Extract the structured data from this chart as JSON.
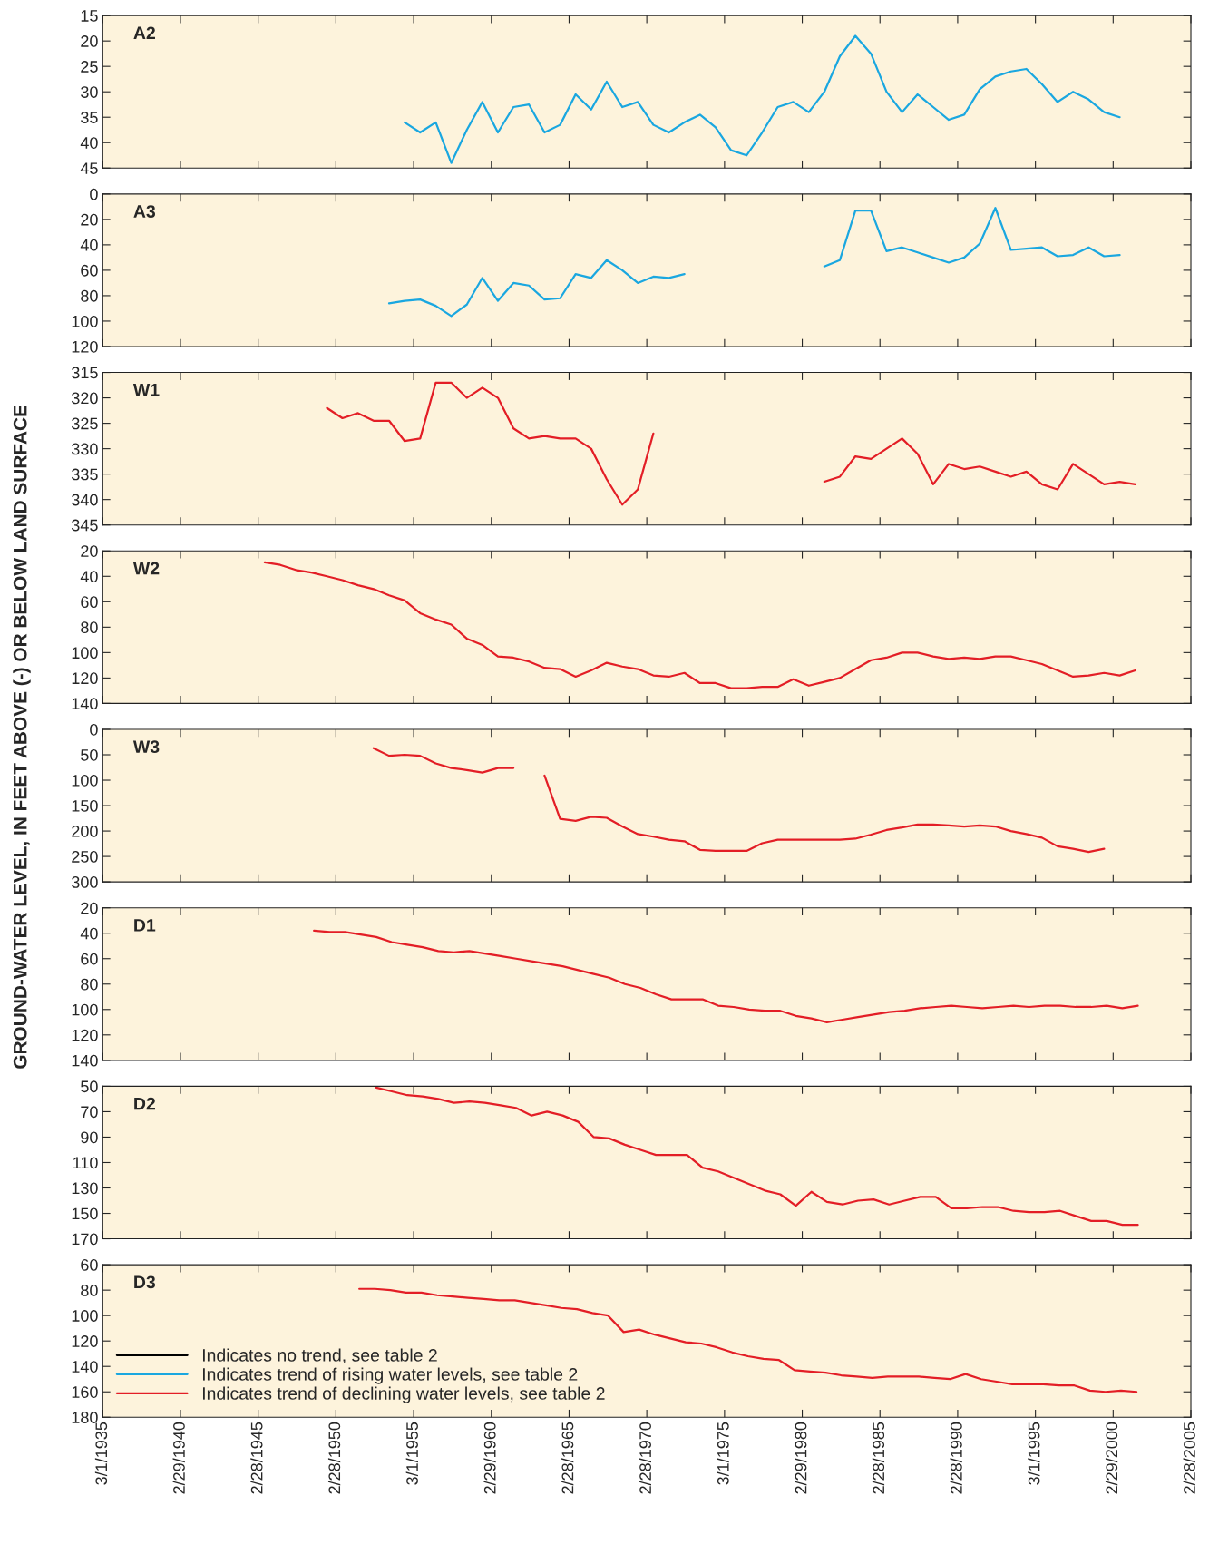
{
  "chart_data": [
    {
      "type": "line",
      "title": "A2",
      "xlim": [
        "1935-03-01",
        "2005-02-28"
      ],
      "xticks": [
        {
          "value": "1935-03-01",
          "label": null
        },
        {
          "value": "1940-02-29",
          "label": null
        },
        {
          "value": "1945-02-28",
          "label": null
        },
        {
          "value": "1950-02-28",
          "label": null
        },
        {
          "value": "1955-03-01",
          "label": null
        },
        {
          "value": "1960-02-29",
          "label": null
        },
        {
          "value": "1965-02-28",
          "label": null
        },
        {
          "value": "1970-02-28",
          "label": null
        },
        {
          "value": "1975-03-01",
          "label": null
        },
        {
          "value": "1980-02-29",
          "label": null
        },
        {
          "value": "1985-02-28",
          "label": null
        },
        {
          "value": "1990-02-28",
          "label": null
        },
        {
          "value": "1995-03-01",
          "label": null
        },
        {
          "value": "2000-02-29",
          "label": null
        },
        {
          "value": "2005-02-28",
          "label": null
        }
      ],
      "ylim": [
        45,
        15
      ],
      "yticks": [
        15,
        20,
        25,
        30,
        35,
        40,
        45
      ],
      "tick_labels": "y",
      "grid": false,
      "legend": false,
      "series": [
        {
          "color": "#1aa7e0",
          "x": [
            "1954-08",
            "1955-08",
            "1956-08",
            "1957-08",
            "1958-08",
            "1959-08",
            "1960-08",
            "1961-08",
            "1962-08",
            "1963-08",
            "1964-08",
            "1965-08",
            "1966-08",
            "1967-08",
            "1968-08",
            "1969-08",
            "1970-08",
            "1971-08",
            "1972-08",
            "1973-08",
            "1974-08",
            "1975-08",
            "1976-08",
            "1977-08",
            "1978-08",
            "1979-08",
            "1980-08",
            "1981-08",
            "1982-08",
            "1983-08",
            "1984-08",
            "1985-08",
            "1986-08",
            "1987-08",
            "1988-08",
            "1989-08",
            "1990-08",
            "1991-08",
            "1992-08",
            "1993-08",
            "1994-08",
            "1995-08",
            "1996-08",
            "1997-08",
            "1998-08",
            "1999-08",
            "2000-08"
          ],
          "values": [
            36,
            38,
            36,
            44,
            37.5,
            32,
            38,
            33,
            32.5,
            38,
            36.5,
            30.5,
            33.5,
            28,
            33,
            32,
            36.5,
            38,
            36,
            34.5,
            37,
            41.5,
            42.5,
            38,
            33,
            32,
            34,
            30,
            23,
            19,
            22.5,
            30,
            34,
            30.5,
            33,
            35.5,
            34.5,
            29.5,
            27,
            26,
            25.5,
            28.5,
            32,
            30,
            31.5,
            34,
            35
          ]
        }
      ]
    },
    {
      "type": "line",
      "title": "A3",
      "xlim": [
        "1935-03-01",
        "2005-02-28"
      ],
      "xticks": [
        {
          "value": "1935-03-01",
          "label": null
        },
        {
          "value": "1940-02-29",
          "label": null
        },
        {
          "value": "1945-02-28",
          "label": null
        },
        {
          "value": "1950-02-28",
          "label": null
        },
        {
          "value": "1955-03-01",
          "label": null
        },
        {
          "value": "1960-02-29",
          "label": null
        },
        {
          "value": "1965-02-28",
          "label": null
        },
        {
          "value": "1970-02-28",
          "label": null
        },
        {
          "value": "1975-03-01",
          "label": null
        },
        {
          "value": "1980-02-29",
          "label": null
        },
        {
          "value": "1985-02-28",
          "label": null
        },
        {
          "value": "1990-02-28",
          "label": null
        },
        {
          "value": "1995-03-01",
          "label": null
        },
        {
          "value": "2000-02-29",
          "label": null
        },
        {
          "value": "2005-02-28",
          "label": null
        }
      ],
      "ylim": [
        120,
        0
      ],
      "yticks": [
        0,
        20,
        40,
        60,
        80,
        100,
        120
      ],
      "tick_labels": "y",
      "grid": false,
      "legend": false,
      "series": [
        {
          "color": "#1aa7e0",
          "x": [
            "1953-08",
            "1954-08",
            "1955-08",
            "1956-08",
            "1957-08",
            "1958-08",
            "1959-08",
            "1960-08",
            "1961-08",
            "1962-08",
            "1963-08",
            "1964-08",
            "1965-08",
            "1966-08",
            "1967-08",
            "1968-08",
            "1969-08",
            "1970-08",
            "1971-08",
            "1972-08",
            "1973-08",
            "1974-08",
            "1975-08",
            "1976-08",
            "1977-08",
            "1978-08",
            "1979-08",
            "1980-08",
            "1981-08",
            "1982-08",
            "1983-08",
            "1984-08",
            "1985-08",
            "1986-08",
            "1987-08",
            "1988-08",
            "1989-08",
            "1990-08",
            "1991-08",
            "1992-08",
            "1993-08",
            "1994-08",
            "1995-08",
            "1996-08",
            "1997-08",
            "1998-08",
            "1999-08",
            "2000-08"
          ],
          "values": [
            86,
            84,
            83,
            88,
            96,
            87,
            66,
            84,
            70,
            72,
            83,
            82,
            63,
            66,
            52,
            60,
            70,
            65,
            66,
            63,
            null,
            null,
            null,
            null,
            null,
            null,
            null,
            null,
            57,
            52,
            13,
            13,
            45,
            42,
            46,
            50,
            54,
            50,
            39,
            11,
            44,
            43,
            42,
            49,
            48,
            42,
            49,
            48
          ]
        }
      ]
    },
    {
      "type": "line",
      "title": "W1",
      "xlim": [
        "1935-03-01",
        "2005-02-28"
      ],
      "xticks": [
        {
          "value": "1935-03-01",
          "label": null
        },
        {
          "value": "1940-02-29",
          "label": null
        },
        {
          "value": "1945-02-28",
          "label": null
        },
        {
          "value": "1950-02-28",
          "label": null
        },
        {
          "value": "1955-03-01",
          "label": null
        },
        {
          "value": "1960-02-29",
          "label": null
        },
        {
          "value": "1965-02-28",
          "label": null
        },
        {
          "value": "1970-02-28",
          "label": null
        },
        {
          "value": "1975-03-01",
          "label": null
        },
        {
          "value": "1980-02-29",
          "label": null
        },
        {
          "value": "1985-02-28",
          "label": null
        },
        {
          "value": "1990-02-28",
          "label": null
        },
        {
          "value": "1995-03-01",
          "label": null
        },
        {
          "value": "2000-02-29",
          "label": null
        },
        {
          "value": "2005-02-28",
          "label": null
        }
      ],
      "ylim": [
        345,
        315
      ],
      "yticks": [
        315,
        320,
        325,
        330,
        335,
        340,
        345
      ],
      "tick_labels": "y",
      "grid": false,
      "legend": false,
      "series": [
        {
          "color": "#e31e26",
          "x": [
            "1949-08",
            "1950-08",
            "1951-08",
            "1952-08",
            "1953-08",
            "1954-08",
            "1955-08",
            "1956-08",
            "1957-08",
            "1958-08",
            "1959-08",
            "1960-08",
            "1961-08",
            "1962-08",
            "1963-08",
            "1964-08",
            "1965-08",
            "1966-08",
            "1967-08",
            "1968-08",
            "1969-08",
            "1970-08",
            "1971-08",
            "1972-08",
            "1973-08",
            "1974-08",
            "1975-08",
            "1976-08",
            "1977-08",
            "1978-08",
            "1979-08",
            "1980-08",
            "1981-08",
            "1982-08",
            "1983-08",
            "1984-08",
            "1985-08",
            "1986-08",
            "1987-08",
            "1988-08",
            "1989-08",
            "1990-08",
            "1991-08",
            "1992-08",
            "1993-08",
            "1994-08",
            "1995-08",
            "1996-08",
            "1997-08",
            "1998-08",
            "1999-08",
            "2000-08",
            "2001-08"
          ],
          "values": [
            322,
            324,
            323,
            324.5,
            324.5,
            328.5,
            328,
            317,
            317,
            320,
            318,
            320,
            326,
            328,
            327.5,
            328,
            328,
            330,
            336,
            341,
            338,
            327,
            null,
            null,
            null,
            null,
            null,
            null,
            null,
            null,
            null,
            null,
            336.5,
            335.5,
            331.5,
            332,
            330,
            328,
            331,
            337,
            333,
            334,
            333.5,
            334.5,
            335.5,
            334.5,
            337,
            338,
            333,
            335,
            337,
            336.5,
            337
          ]
        }
      ]
    },
    {
      "type": "line",
      "title": "W2",
      "xlim": [
        "1935-03-01",
        "2005-02-28"
      ],
      "xticks": [
        {
          "value": "1935-03-01",
          "label": null
        },
        {
          "value": "1940-02-29",
          "label": null
        },
        {
          "value": "1945-02-28",
          "label": null
        },
        {
          "value": "1950-02-28",
          "label": null
        },
        {
          "value": "1955-03-01",
          "label": null
        },
        {
          "value": "1960-02-29",
          "label": null
        },
        {
          "value": "1965-02-28",
          "label": null
        },
        {
          "value": "1970-02-28",
          "label": null
        },
        {
          "value": "1975-03-01",
          "label": null
        },
        {
          "value": "1980-02-29",
          "label": null
        },
        {
          "value": "1985-02-28",
          "label": null
        },
        {
          "value": "1990-02-28",
          "label": null
        },
        {
          "value": "1995-03-01",
          "label": null
        },
        {
          "value": "2000-02-29",
          "label": null
        },
        {
          "value": "2005-02-28",
          "label": null
        }
      ],
      "ylim": [
        140,
        20
      ],
      "yticks": [
        20,
        40,
        60,
        80,
        100,
        120,
        140
      ],
      "tick_labels": "y",
      "grid": false,
      "legend": false,
      "series": [
        {
          "color": "#e31e26",
          "x": [
            "1945-08",
            "1946-08",
            "1947-08",
            "1948-08",
            "1949-08",
            "1950-08",
            "1951-08",
            "1952-08",
            "1953-08",
            "1954-08",
            "1955-08",
            "1956-08",
            "1957-08",
            "1958-08",
            "1959-08",
            "1960-08",
            "1961-08",
            "1962-08",
            "1963-08",
            "1964-08",
            "1965-08",
            "1966-08",
            "1967-08",
            "1968-08",
            "1969-08",
            "1970-08",
            "1971-08",
            "1972-08",
            "1973-08",
            "1974-08",
            "1975-08",
            "1976-08",
            "1977-08",
            "1978-08",
            "1979-08",
            "1980-08",
            "1981-08",
            "1982-08",
            "1983-08",
            "1984-08",
            "1985-08",
            "1986-08",
            "1987-08",
            "1988-08",
            "1989-08",
            "1990-08",
            "1991-08",
            "1992-08",
            "1993-08",
            "1994-08",
            "1995-08",
            "1996-08",
            "1997-08",
            "1998-08",
            "1999-08",
            "2000-08",
            "2001-08"
          ],
          "values": [
            29,
            31,
            35,
            37,
            40,
            43,
            47,
            50,
            55,
            59,
            69,
            74,
            78,
            89,
            94,
            103,
            104,
            107,
            112,
            113,
            119,
            114,
            108,
            111,
            113,
            118,
            119,
            116,
            124,
            124,
            128,
            128,
            127,
            127,
            121,
            126,
            123,
            120,
            113,
            106,
            104,
            100,
            100,
            103,
            105,
            104,
            105,
            103,
            103,
            106,
            109,
            114,
            119,
            118,
            116,
            118,
            114
          ]
        }
      ]
    },
    {
      "type": "line",
      "title": "W3",
      "ylabel": "GROUND-WATER LEVEL, IN FEET ABOVE (-) OR BELOW LAND SURFACE",
      "xlim": [
        "1935-03-01",
        "2005-02-28"
      ],
      "xticks": [
        {
          "value": "1935-03-01",
          "label": null
        },
        {
          "value": "1940-02-29",
          "label": null
        },
        {
          "value": "1945-02-28",
          "label": null
        },
        {
          "value": "1950-02-28",
          "label": null
        },
        {
          "value": "1955-03-01",
          "label": null
        },
        {
          "value": "1960-02-29",
          "label": null
        },
        {
          "value": "1965-02-28",
          "label": null
        },
        {
          "value": "1970-02-28",
          "label": null
        },
        {
          "value": "1975-03-01",
          "label": null
        },
        {
          "value": "1980-02-29",
          "label": null
        },
        {
          "value": "1985-02-28",
          "label": null
        },
        {
          "value": "1990-02-28",
          "label": null
        },
        {
          "value": "1995-03-01",
          "label": null
        },
        {
          "value": "2000-02-29",
          "label": null
        },
        {
          "value": "2005-02-28",
          "label": null
        }
      ],
      "ylim": [
        300,
        0
      ],
      "yticks": [
        0,
        50,
        100,
        150,
        200,
        250,
        300
      ],
      "tick_labels": "y",
      "grid": false,
      "legend": false,
      "series": [
        {
          "color": "#e31e26",
          "x": [
            "1952-08",
            "1953-08",
            "1954-08",
            "1955-08",
            "1956-08",
            "1957-08",
            "1958-08",
            "1959-08",
            "1960-08",
            "1961-08",
            "1962-08",
            "1963-08",
            "1964-08",
            "1965-08",
            "1966-08",
            "1967-08",
            "1968-08",
            "1969-08",
            "1970-08",
            "1971-08",
            "1972-08",
            "1973-08",
            "1974-08",
            "1975-08",
            "1976-08",
            "1977-08",
            "1978-08",
            "1979-08",
            "1980-08",
            "1981-08",
            "1982-08",
            "1983-08",
            "1984-08",
            "1985-08",
            "1986-08",
            "1987-08",
            "1988-08",
            "1989-08",
            "1990-08",
            "1991-08",
            "1992-08",
            "1993-08",
            "1994-08",
            "1995-08",
            "1996-08",
            "1997-08",
            "1998-08",
            "1999-08"
          ],
          "values": [
            37,
            52,
            50,
            52,
            67,
            76,
            80,
            85,
            76,
            76,
            null,
            91,
            176,
            180,
            172,
            174,
            191,
            206,
            211,
            217,
            220,
            237,
            239,
            239,
            239,
            224,
            217,
            217,
            217,
            217,
            217,
            215,
            207,
            198,
            193,
            187,
            187,
            189,
            191,
            189,
            191,
            200,
            206,
            213,
            230,
            235,
            241,
            235
          ]
        }
      ]
    },
    {
      "type": "line",
      "title": "D1",
      "xlim": [
        "1935-03-01",
        "2005-02-28"
      ],
      "xticks": [
        {
          "value": "1935-03-01",
          "label": null
        },
        {
          "value": "1940-02-29",
          "label": null
        },
        {
          "value": "1945-02-28",
          "label": null
        },
        {
          "value": "1950-02-28",
          "label": null
        },
        {
          "value": "1955-03-01",
          "label": null
        },
        {
          "value": "1960-02-29",
          "label": null
        },
        {
          "value": "1965-02-28",
          "label": null
        },
        {
          "value": "1970-02-28",
          "label": null
        },
        {
          "value": "1975-03-01",
          "label": null
        },
        {
          "value": "1980-02-29",
          "label": null
        },
        {
          "value": "1985-02-28",
          "label": null
        },
        {
          "value": "1990-02-28",
          "label": null
        },
        {
          "value": "1995-03-01",
          "label": null
        },
        {
          "value": "2000-02-29",
          "label": null
        },
        {
          "value": "2005-02-28",
          "label": null
        }
      ],
      "ylim": [
        140,
        20
      ],
      "yticks": [
        20,
        40,
        60,
        80,
        100,
        120,
        140
      ],
      "tick_labels": "y",
      "grid": false,
      "legend": false,
      "series": [
        {
          "color": "#e31e26",
          "x": [
            "1948-10",
            "1949-10",
            "1950-10",
            "1951-10",
            "1952-10",
            "1953-10",
            "1954-10",
            "1955-10",
            "1956-10",
            "1957-10",
            "1958-10",
            "1959-10",
            "1960-10",
            "1961-10",
            "1962-10",
            "1963-10",
            "1964-10",
            "1965-10",
            "1966-10",
            "1967-10",
            "1968-10",
            "1969-10",
            "1970-10",
            "1971-10",
            "1972-10",
            "1973-10",
            "1974-10",
            "1975-10",
            "1976-10",
            "1977-10",
            "1978-10",
            "1979-10",
            "1980-10",
            "1981-10",
            "1982-10",
            "1983-10",
            "1984-10",
            "1985-10",
            "1986-10",
            "1987-10",
            "1988-10",
            "1989-10",
            "1990-10",
            "1991-10",
            "1992-10",
            "1993-10",
            "1994-10",
            "1995-10",
            "1996-10",
            "1997-10",
            "1998-10",
            "1999-10",
            "2000-10",
            "2001-10"
          ],
          "values": [
            38,
            39,
            39,
            41,
            43,
            47,
            49,
            51,
            54,
            55,
            54,
            56,
            58,
            60,
            62,
            64,
            66,
            69,
            72,
            75,
            80,
            83,
            88,
            92,
            92,
            92,
            97,
            98,
            100,
            101,
            101,
            105,
            107,
            110,
            108,
            106,
            104,
            102,
            101,
            99,
            98,
            97,
            98,
            99,
            98,
            97,
            98,
            97,
            97,
            98,
            98,
            97,
            99,
            97
          ]
        }
      ]
    },
    {
      "type": "line",
      "title": "D2",
      "xlim": [
        "1935-03-01",
        "2005-02-28"
      ],
      "xticks": [
        {
          "value": "1935-03-01",
          "label": null
        },
        {
          "value": "1940-02-29",
          "label": null
        },
        {
          "value": "1945-02-28",
          "label": null
        },
        {
          "value": "1950-02-28",
          "label": null
        },
        {
          "value": "1955-03-01",
          "label": null
        },
        {
          "value": "1960-02-29",
          "label": null
        },
        {
          "value": "1965-02-28",
          "label": null
        },
        {
          "value": "1970-02-28",
          "label": null
        },
        {
          "value": "1975-03-01",
          "label": null
        },
        {
          "value": "1980-02-29",
          "label": null
        },
        {
          "value": "1985-02-28",
          "label": null
        },
        {
          "value": "1990-02-28",
          "label": null
        },
        {
          "value": "1995-03-01",
          "label": null
        },
        {
          "value": "2000-02-29",
          "label": null
        },
        {
          "value": "2005-02-28",
          "label": null
        }
      ],
      "ylim": [
        170,
        50
      ],
      "yticks": [
        50,
        70,
        90,
        110,
        130,
        150,
        170
      ],
      "tick_labels": "y",
      "grid": false,
      "legend": false,
      "series": [
        {
          "color": "#e31e26",
          "x": [
            "1952-10",
            "1953-10",
            "1954-10",
            "1955-10",
            "1956-10",
            "1957-10",
            "1958-10",
            "1959-10",
            "1960-10",
            "1961-10",
            "1962-10",
            "1963-10",
            "1964-10",
            "1965-10",
            "1966-10",
            "1967-10",
            "1968-10",
            "1969-10",
            "1970-10",
            "1971-10",
            "1972-10",
            "1973-10",
            "1974-10",
            "1975-10",
            "1976-10",
            "1977-10",
            "1978-10",
            "1979-10",
            "1980-10",
            "1981-10",
            "1982-10",
            "1983-10",
            "1984-10",
            "1985-10",
            "1986-10",
            "1987-10",
            "1988-10",
            "1989-10",
            "1990-10",
            "1991-10",
            "1992-10",
            "1993-10",
            "1994-10",
            "1995-10",
            "1996-10",
            "1997-10",
            "1998-10",
            "1999-10",
            "2000-10",
            "2001-10"
          ],
          "values": [
            51,
            54,
            57,
            58,
            60,
            63,
            62,
            63,
            65,
            67,
            73,
            70,
            73,
            78,
            90,
            91,
            96,
            100,
            104,
            104,
            104,
            114,
            117,
            122,
            127,
            132,
            135,
            144,
            133,
            141,
            143,
            140,
            139,
            143,
            140,
            137,
            137,
            146,
            146,
            145,
            145,
            148,
            149,
            149,
            148,
            152,
            156,
            156,
            159,
            159
          ]
        }
      ]
    },
    {
      "type": "line",
      "title": "D3",
      "xlim": [
        "1935-03-01",
        "2005-02-28"
      ],
      "xticks": [
        {
          "value": "1935-03-01",
          "label": "3/1/1935"
        },
        {
          "value": "1940-02-29",
          "label": "2/29/1940"
        },
        {
          "value": "1945-02-28",
          "label": "2/28/1945"
        },
        {
          "value": "1950-02-28",
          "label": "2/28/1950"
        },
        {
          "value": "1955-03-01",
          "label": "3/1/1955"
        },
        {
          "value": "1960-02-29",
          "label": "2/29/1960"
        },
        {
          "value": "1965-02-28",
          "label": "2/28/1965"
        },
        {
          "value": "1970-02-28",
          "label": "2/28/1970"
        },
        {
          "value": "1975-03-01",
          "label": "3/1/1975"
        },
        {
          "value": "1980-02-29",
          "label": "2/29/1980"
        },
        {
          "value": "1985-02-28",
          "label": "2/28/1985"
        },
        {
          "value": "1990-02-28",
          "label": "2/28/1990"
        },
        {
          "value": "1995-03-01",
          "label": "3/1/1995"
        },
        {
          "value": "2000-02-29",
          "label": "2/29/2000"
        },
        {
          "value": "2005-02-28",
          "label": "2/28/2005"
        }
      ],
      "ylim": [
        180,
        60
      ],
      "yticks": [
        60,
        80,
        100,
        120,
        140,
        160,
        180
      ],
      "grid": false,
      "legend": "bottom left",
      "series": [
        {
          "name": "Indicates no trend, see table 2",
          "color": "#000000"
        },
        {
          "name": "Indicates trend of rising water levels, see table 2",
          "color": "#1aa7e0"
        },
        {
          "name": "Indicates trend of declining water levels, see table 2",
          "color": "#e31e26",
          "x": [
            "1951-09",
            "1952-09",
            "1953-09",
            "1954-09",
            "1955-09",
            "1956-09",
            "1957-09",
            "1958-09",
            "1959-09",
            "1960-09",
            "1961-09",
            "1962-09",
            "1963-09",
            "1964-09",
            "1965-09",
            "1966-09",
            "1967-09",
            "1968-09",
            "1969-09",
            "1970-09",
            "1971-09",
            "1972-09",
            "1973-09",
            "1974-09",
            "1975-09",
            "1976-09",
            "1977-09",
            "1978-09",
            "1979-09",
            "1980-09",
            "1981-09",
            "1982-09",
            "1983-09",
            "1984-09",
            "1985-09",
            "1986-09",
            "1987-09",
            "1988-09",
            "1989-09",
            "1990-09",
            "1991-09",
            "1992-09",
            "1993-09",
            "1994-09",
            "1995-09",
            "1996-09",
            "1997-09",
            "1998-09",
            "1999-09",
            "2000-09",
            "2001-09"
          ],
          "values": [
            79,
            79,
            80,
            82,
            82,
            84,
            85,
            86,
            87,
            88,
            88,
            90,
            92,
            94,
            95,
            98,
            100,
            113,
            111,
            115,
            118,
            121,
            122,
            125,
            129,
            132,
            134,
            135,
            143,
            144,
            145,
            147,
            148,
            149,
            148,
            148,
            148,
            149,
            150,
            146,
            150,
            152,
            154,
            154,
            154,
            155,
            155,
            159,
            160,
            159,
            160
          ]
        }
      ]
    }
  ]
}
